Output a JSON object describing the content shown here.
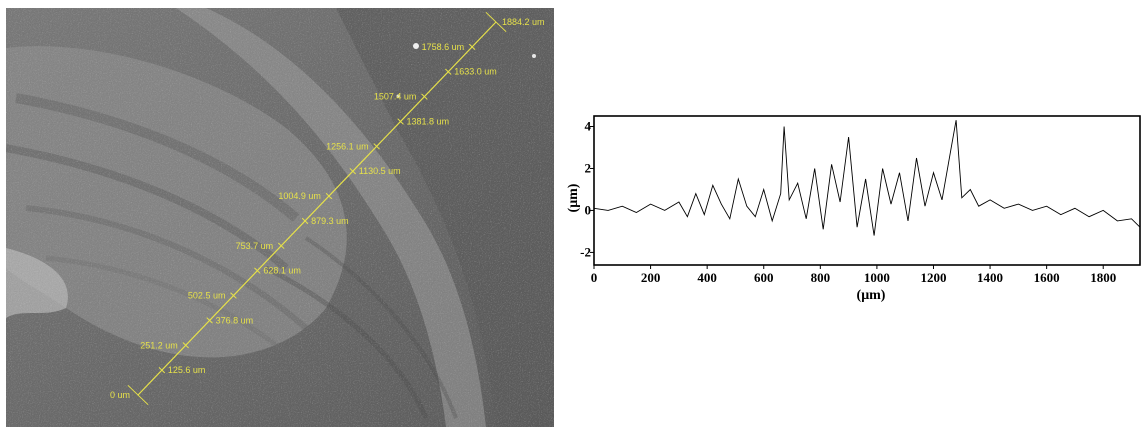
{
  "sem_image": {
    "scale_color": "#e6e14a",
    "scale_labels": [
      "0 um",
      "125.6 um",
      "251.2 um",
      "376.8 um",
      "502.5 um",
      "628.1 um",
      "753.7 um",
      "879.3 um",
      "1004.9 um",
      "1130.5 um",
      "1256.1 um",
      "1381.8 um",
      "1507.4 um",
      "1633.0 um",
      "1758.6 um",
      "1884.2 um"
    ]
  },
  "chart_data": {
    "type": "line",
    "title": "",
    "xlabel": "(μm)",
    "ylabel": "(μm)",
    "xlim": [
      0,
      1930
    ],
    "ylim": [
      -2.6,
      4.5
    ],
    "xticks": [
      "0",
      "200",
      "400",
      "600",
      "800",
      "1000",
      "1200",
      "1400",
      "1600",
      "1800"
    ],
    "yticks": [
      "4",
      "2",
      "0",
      "-2"
    ],
    "grid": false,
    "line_color": "#000000",
    "series": [
      {
        "x": [
          0,
          50,
          100,
          150,
          200,
          250,
          300,
          330,
          360,
          390,
          420,
          450,
          480,
          510,
          540,
          570,
          600,
          630,
          660,
          672,
          690,
          720,
          750,
          780,
          810,
          840,
          870,
          900,
          930,
          960,
          990,
          1020,
          1050,
          1080,
          1110,
          1140,
          1170,
          1200,
          1230,
          1260,
          1280,
          1300,
          1330,
          1360,
          1400,
          1450,
          1500,
          1550,
          1600,
          1650,
          1700,
          1750,
          1800,
          1850,
          1900,
          1930
        ],
        "y": [
          0.1,
          0.0,
          0.2,
          -0.1,
          0.3,
          0.0,
          0.4,
          -0.3,
          0.8,
          -0.2,
          1.2,
          0.3,
          -0.4,
          1.5,
          0.2,
          -0.3,
          1.0,
          -0.5,
          0.8,
          4.0,
          0.5,
          1.3,
          -0.4,
          2.0,
          -0.9,
          2.2,
          0.4,
          3.5,
          -0.8,
          1.5,
          -1.2,
          2.0,
          0.3,
          1.8,
          -0.5,
          2.5,
          0.2,
          1.8,
          0.5,
          2.8,
          4.3,
          0.6,
          1.0,
          0.2,
          0.5,
          0.1,
          0.3,
          0.0,
          0.2,
          -0.2,
          0.1,
          -0.3,
          0.0,
          -0.5,
          -0.4,
          -0.8
        ]
      }
    ]
  }
}
